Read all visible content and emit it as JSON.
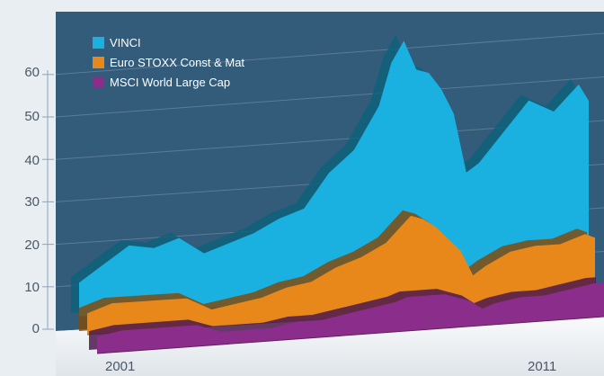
{
  "chart_data": {
    "type": "area",
    "title": "",
    "xlabel": "",
    "ylabel": "",
    "ylim": [
      0,
      60
    ],
    "grid": true,
    "legend_position": "top-left",
    "y_ticks": [
      "0",
      "10",
      "20",
      "30",
      "40",
      "50",
      "60"
    ],
    "x_ticks": [
      "2001",
      "2011"
    ],
    "x": [
      2001.0,
      2001.5,
      2002.0,
      2002.5,
      2003.0,
      2003.5,
      2004.0,
      2004.5,
      2005.0,
      2005.5,
      2006.0,
      2006.5,
      2007.0,
      2007.25,
      2007.5,
      2007.75,
      2008.0,
      2008.25,
      2008.5,
      2008.75,
      2009.0,
      2009.5,
      2010.0,
      2010.5,
      2011.0,
      2011.2
    ],
    "series": [
      {
        "name": "VINCI",
        "color": "#1ab0e0",
        "values": [
          8,
          12,
          16,
          15,
          17,
          13,
          15,
          17,
          20,
          22,
          30,
          35,
          45,
          55,
          60,
          53,
          52,
          48,
          42,
          28,
          30,
          37,
          44,
          41,
          47,
          43
        ]
      },
      {
        "name": "Euro STOXX Const & Mat",
        "color": "#e8881a",
        "values": [
          5,
          7,
          7,
          7,
          7,
          4,
          5,
          6,
          8,
          9,
          12,
          14,
          17,
          20,
          23,
          22,
          20,
          17,
          14,
          8,
          10,
          13,
          14,
          14,
          16,
          15
        ]
      },
      {
        "name": "MSCI World Large Cap",
        "color": "#8b2d8b",
        "values": [
          4,
          5,
          5,
          5,
          5,
          3,
          3,
          3,
          4,
          4,
          5,
          6,
          7,
          8,
          8,
          8,
          8,
          7,
          6,
          4,
          5,
          6,
          6,
          7,
          8,
          8
        ]
      }
    ]
  }
}
